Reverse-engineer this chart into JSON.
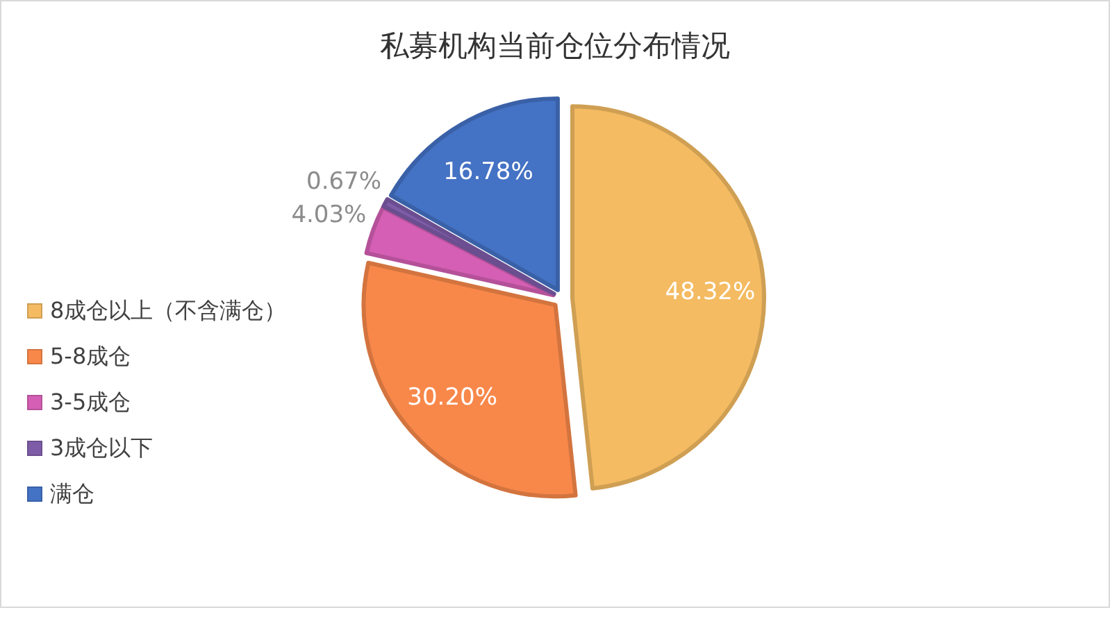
{
  "chart_data": {
    "type": "pie",
    "title": "私募机构当前仓位分布情况",
    "categories": [
      "8成仓以上（不含满仓）",
      "5-8成仓",
      "3-5成仓",
      "3成仓以下",
      "满仓"
    ],
    "values": [
      48.32,
      30.2,
      4.03,
      0.67,
      16.78
    ],
    "value_labels": [
      "48.32%",
      "30.20%",
      "4.03%",
      "0.67%",
      "16.78%"
    ],
    "colors": [
      "#f4bb62",
      "#f8884a",
      "#d45fb4",
      "#7e5ca8",
      "#4472c4"
    ],
    "legend": "left"
  }
}
